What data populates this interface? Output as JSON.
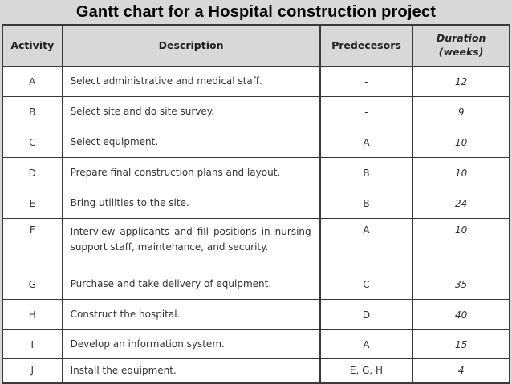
{
  "page": {
    "title": "Gantt chart for a Hospital construction project"
  },
  "colors": {
    "page_background": "#d8d8d8",
    "header_background": "#d8d8d8",
    "cell_background": "#ffffff",
    "border": "#3a3a3a",
    "text": "#333333",
    "title_text": "#000000"
  },
  "table": {
    "headers": {
      "activity": "Activity",
      "description": "Description",
      "predecessors": "Predecesors",
      "duration_line1": "Duration",
      "duration_line2": "(weeks)"
    },
    "rows": [
      {
        "activity": "A",
        "description": "Select administrative and medical staff.",
        "predecessors": "-",
        "duration": "12"
      },
      {
        "activity": "B",
        "description": "Select site and do site survey.",
        "predecessors": "-",
        "duration": "9"
      },
      {
        "activity": "C",
        "description": "Select equipment.",
        "predecessors": "A",
        "duration": "10"
      },
      {
        "activity": "D",
        "description": "Prepare final construction plans and layout.",
        "predecessors": "B",
        "duration": "10"
      },
      {
        "activity": "E",
        "description": "Bring utilities to the site.",
        "predecessors": "B",
        "duration": "24"
      },
      {
        "activity": "F",
        "description": "Interview applicants and fill positions in nursing support staff, maintenance, and security.",
        "predecessors": "A",
        "duration": "10"
      },
      {
        "activity": "G",
        "description": "Purchase and take delivery of equipment.",
        "predecessors": "C",
        "duration": "35"
      },
      {
        "activity": "H",
        "description": "Construct the hospital.",
        "predecessors": "D",
        "duration": "40"
      },
      {
        "activity": "I",
        "description": "Develop an information system.",
        "predecessors": "A",
        "duration": "15"
      },
      {
        "activity": "J",
        "description": "Install the equipment.",
        "predecessors": "E, G, H",
        "duration": "4"
      }
    ]
  }
}
